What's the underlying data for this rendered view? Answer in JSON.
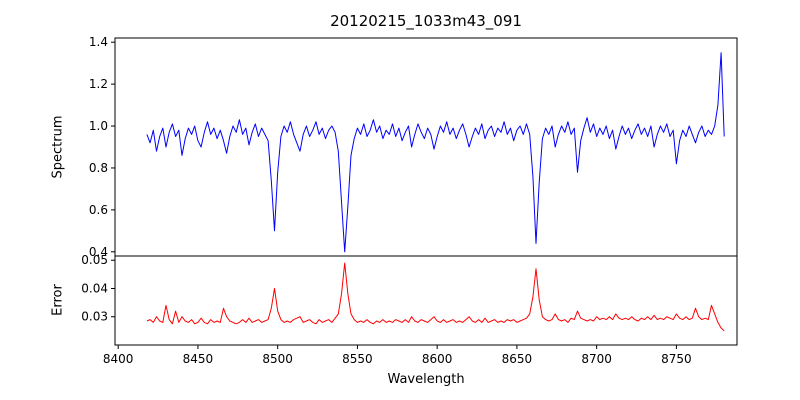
{
  "chart_data": {
    "type": "line",
    "title": "20120215_1033m43_091",
    "xlabel": "Wavelength",
    "x_start": 8418,
    "x_step": 2,
    "xlim": [
      8398,
      8788
    ],
    "xticks": [
      8400,
      8450,
      8500,
      8550,
      8600,
      8650,
      8700,
      8750
    ],
    "xtick_labels": [
      "8400",
      "8450",
      "8500",
      "8550",
      "8600",
      "8650",
      "8700",
      "8750"
    ],
    "legend": "none",
    "grid": false,
    "panels": [
      {
        "name": "spectrum",
        "ylabel": "Spectrum",
        "ylim": [
          0.38,
          1.42
        ],
        "yticks": [
          0.4,
          0.6,
          0.8,
          1.0,
          1.2,
          1.4
        ],
        "ytick_labels": [
          "0.4",
          "0.6",
          "0.8",
          "1.0",
          "1.2",
          "1.4"
        ],
        "color": "#0000ff",
        "features": "absorption lines near 8498, 8542, 8662; emission spike near 8778",
        "values": [
          0.96,
          0.92,
          0.98,
          0.88,
          0.95,
          0.99,
          0.9,
          0.97,
          1.01,
          0.95,
          0.98,
          0.86,
          0.94,
          0.99,
          0.96,
          1.0,
          0.93,
          0.9,
          0.97,
          1.02,
          0.96,
          0.99,
          0.94,
          0.98,
          0.93,
          0.87,
          0.95,
          1.0,
          0.97,
          1.03,
          0.96,
          0.99,
          0.91,
          0.97,
          1.01,
          0.95,
          0.99,
          0.96,
          0.93,
          0.74,
          0.5,
          0.78,
          0.95,
          1.0,
          0.97,
          1.02,
          0.96,
          0.92,
          0.88,
          0.96,
          1.0,
          0.95,
          0.98,
          1.02,
          0.96,
          0.99,
          0.94,
          0.98,
          1.0,
          0.97,
          0.88,
          0.64,
          0.4,
          0.62,
          0.86,
          0.94,
          0.99,
          0.96,
          1.01,
          0.95,
          0.98,
          1.03,
          0.97,
          1.0,
          0.94,
          0.98,
          0.96,
          1.01,
          0.95,
          0.99,
          0.93,
          0.97,
          1.0,
          0.9,
          0.96,
          1.01,
          0.97,
          0.94,
          0.99,
          0.96,
          0.89,
          0.95,
          1.0,
          0.97,
          1.02,
          0.96,
          0.99,
          0.94,
          0.98,
          1.01,
          0.96,
          0.9,
          0.95,
          0.99,
          0.96,
          1.01,
          0.94,
          0.98,
          1.0,
          0.95,
          0.99,
          0.97,
          1.02,
          0.96,
          0.99,
          0.93,
          0.98,
          1.0,
          0.96,
          1.01,
          0.96,
          0.76,
          0.44,
          0.73,
          0.94,
          0.99,
          0.96,
          1.0,
          0.9,
          0.96,
          1.0,
          0.97,
          1.02,
          0.96,
          0.99,
          0.78,
          0.93,
          0.99,
          1.04,
          0.97,
          1.01,
          0.95,
          0.99,
          0.96,
          1.0,
          0.94,
          0.98,
          0.89,
          0.95,
          1.0,
          0.96,
          0.99,
          0.94,
          0.98,
          1.01,
          0.96,
          0.99,
          0.95,
          1.0,
          0.9,
          0.96,
          1.0,
          0.97,
          1.01,
          0.95,
          0.98,
          0.82,
          0.93,
          0.98,
          0.95,
          1.0,
          0.96,
          0.92,
          0.97,
          1.0,
          0.95,
          0.98,
          0.96,
          1.0,
          1.1,
          1.35,
          0.95
        ]
      },
      {
        "name": "error",
        "ylabel": "Error",
        "ylim": [
          0.02,
          0.0515
        ],
        "yticks": [
          0.03,
          0.04,
          0.05
        ],
        "ytick_labels": [
          "0.03",
          "0.04",
          "0.05"
        ],
        "color": "#ff0000",
        "features": "error spikes near 8498, 8542, 8662 matching absorption lines",
        "values": [
          0.0285,
          0.029,
          0.028,
          0.03,
          0.0285,
          0.028,
          0.034,
          0.029,
          0.0275,
          0.032,
          0.028,
          0.03,
          0.0285,
          0.028,
          0.029,
          0.0275,
          0.028,
          0.0295,
          0.028,
          0.0275,
          0.029,
          0.028,
          0.0285,
          0.028,
          0.033,
          0.03,
          0.0285,
          0.028,
          0.0275,
          0.028,
          0.029,
          0.028,
          0.0295,
          0.028,
          0.0285,
          0.029,
          0.028,
          0.0285,
          0.029,
          0.033,
          0.04,
          0.032,
          0.029,
          0.028,
          0.0285,
          0.028,
          0.029,
          0.0295,
          0.03,
          0.028,
          0.0285,
          0.029,
          0.028,
          0.0275,
          0.029,
          0.028,
          0.0285,
          0.029,
          0.028,
          0.0295,
          0.031,
          0.038,
          0.049,
          0.038,
          0.031,
          0.029,
          0.028,
          0.0285,
          0.028,
          0.029,
          0.028,
          0.0275,
          0.0285,
          0.028,
          0.029,
          0.028,
          0.0285,
          0.028,
          0.029,
          0.0285,
          0.028,
          0.029,
          0.028,
          0.03,
          0.0285,
          0.028,
          0.029,
          0.0285,
          0.028,
          0.029,
          0.03,
          0.0285,
          0.028,
          0.029,
          0.028,
          0.0285,
          0.029,
          0.028,
          0.0285,
          0.028,
          0.029,
          0.03,
          0.0285,
          0.028,
          0.029,
          0.028,
          0.0295,
          0.028,
          0.0285,
          0.029,
          0.028,
          0.0285,
          0.028,
          0.029,
          0.0285,
          0.029,
          0.028,
          0.0285,
          0.029,
          0.0295,
          0.031,
          0.037,
          0.047,
          0.036,
          0.03,
          0.029,
          0.0285,
          0.029,
          0.031,
          0.029,
          0.0285,
          0.029,
          0.028,
          0.0295,
          0.029,
          0.032,
          0.0295,
          0.029,
          0.0285,
          0.029,
          0.0285,
          0.03,
          0.029,
          0.0295,
          0.029,
          0.03,
          0.029,
          0.031,
          0.0295,
          0.029,
          0.0295,
          0.029,
          0.03,
          0.029,
          0.0285,
          0.0295,
          0.029,
          0.03,
          0.029,
          0.0305,
          0.029,
          0.0295,
          0.029,
          0.03,
          0.0295,
          0.029,
          0.031,
          0.0295,
          0.029,
          0.03,
          0.029,
          0.0295,
          0.033,
          0.03,
          0.029,
          0.0295,
          0.029,
          0.034,
          0.031,
          0.028,
          0.026,
          0.025
        ]
      }
    ]
  }
}
